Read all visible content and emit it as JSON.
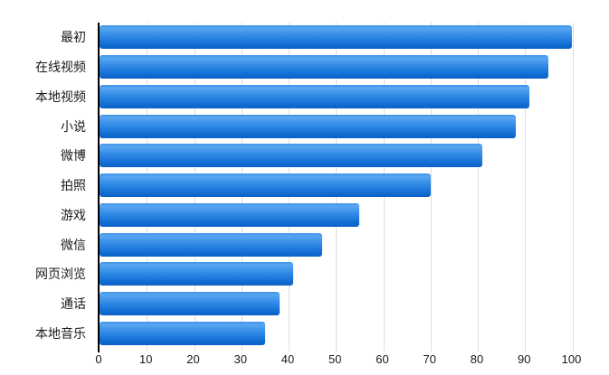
{
  "chart_data": {
    "type": "bar",
    "orientation": "horizontal",
    "title": "",
    "xlabel": "",
    "ylabel": "",
    "categories": [
      "最初",
      "在线视频",
      "本地视频",
      "小说",
      "微博",
      "拍照",
      "游戏",
      "微信",
      "网页浏览",
      "通话",
      "本地音乐"
    ],
    "values": [
      100,
      95,
      91,
      88,
      81,
      70,
      55,
      47,
      41,
      38,
      35
    ],
    "xlim": [
      0,
      100
    ],
    "xticks": [
      0,
      10,
      20,
      30,
      40,
      50,
      60,
      70,
      80,
      90,
      100
    ],
    "grid": true,
    "legend": false,
    "colors": {
      "bar_gradient_light": "#58a6f1",
      "bar_gradient_mid": "#2f88e5",
      "bar_gradient_dark": "#0c60c7",
      "axis_line": "#000000",
      "gridline": "#dddddd",
      "text": "#1a1a1a",
      "background": "#ffffff"
    }
  }
}
